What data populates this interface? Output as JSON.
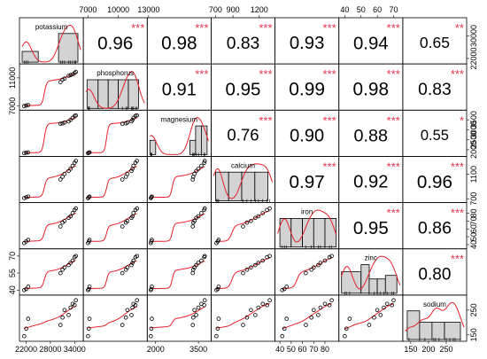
{
  "chart_data": {
    "type": "scatter-matrix",
    "variables": [
      "potassium",
      "phosphorus",
      "magnesium",
      "calcium",
      "iron",
      "zinc",
      "sodium"
    ],
    "colors": {
      "fit_line": "#e8202b",
      "stars": "#e8344f",
      "hist_fill": "#d3d3d3",
      "border": "#000000"
    },
    "observations": [
      {
        "potassium": 21500,
        "phosphorus": 7000,
        "magnesium": 1830,
        "calcium": 710,
        "iron": 42,
        "zinc": 40,
        "sodium": 145
      },
      {
        "potassium": 22000,
        "phosphorus": 7080,
        "magnesium": 1850,
        "calcium": 725,
        "iron": 44,
        "zinc": 41,
        "sodium": 175
      },
      {
        "potassium": 22500,
        "phosphorus": 7150,
        "magnesium": 1870,
        "calcium": 735,
        "iron": 46,
        "zinc": 43,
        "sodium": 215
      },
      {
        "potassium": 30500,
        "phosphorus": 10400,
        "magnesium": 3300,
        "calcium": 1015,
        "iron": 63,
        "zinc": 55,
        "sodium": 190
      },
      {
        "potassium": 31000,
        "phosphorus": 10750,
        "magnesium": 3320,
        "calcium": 1060,
        "iron": 68,
        "zinc": 58,
        "sodium": 220
      },
      {
        "potassium": 31500,
        "phosphorus": 10900,
        "magnesium": 3360,
        "calcium": 1105,
        "iron": 70,
        "zinc": 60,
        "sodium": 250
      },
      {
        "potassium": 32500,
        "phosphorus": 11300,
        "magnesium": 3420,
        "calcium": 1155,
        "iron": 74,
        "zinc": 62,
        "sodium": 230
      },
      {
        "potassium": 33000,
        "phosphorus": 11400,
        "magnesium": 3500,
        "calcium": 1190,
        "iron": 76,
        "zinc": 64,
        "sodium": 260
      },
      {
        "potassium": 33500,
        "phosphorus": 11500,
        "magnesium": 3600,
        "calcium": 1240,
        "iron": 80,
        "zinc": 66,
        "sodium": 275
      },
      {
        "potassium": 34000,
        "phosphorus": 11700,
        "magnesium": 3700,
        "calcium": 1290,
        "iron": 84,
        "zinc": 69,
        "sodium": 270
      },
      {
        "potassium": 34300,
        "phosphorus": 11850,
        "magnesium": 3720,
        "calcium": 1320,
        "iron": 86,
        "zinc": 70,
        "sodium": 290
      }
    ],
    "correlations": [
      {
        "row": 0,
        "col": 1,
        "value": "0.96",
        "stars": "***"
      },
      {
        "row": 0,
        "col": 2,
        "value": "0.98",
        "stars": "***"
      },
      {
        "row": 0,
        "col": 3,
        "value": "0.83",
        "stars": "***"
      },
      {
        "row": 0,
        "col": 4,
        "value": "0.93",
        "stars": "***"
      },
      {
        "row": 0,
        "col": 5,
        "value": "0.94",
        "stars": "***"
      },
      {
        "row": 0,
        "col": 6,
        "value": "0.65",
        "stars": "**"
      },
      {
        "row": 1,
        "col": 2,
        "value": "0.91",
        "stars": "***"
      },
      {
        "row": 1,
        "col": 3,
        "value": "0.95",
        "stars": "***"
      },
      {
        "row": 1,
        "col": 4,
        "value": "0.99",
        "stars": "***"
      },
      {
        "row": 1,
        "col": 5,
        "value": "0.98",
        "stars": "***"
      },
      {
        "row": 1,
        "col": 6,
        "value": "0.83",
        "stars": "***"
      },
      {
        "row": 2,
        "col": 3,
        "value": "0.76",
        "stars": "***"
      },
      {
        "row": 2,
        "col": 4,
        "value": "0.90",
        "stars": "***"
      },
      {
        "row": 2,
        "col": 5,
        "value": "0.88",
        "stars": "***"
      },
      {
        "row": 2,
        "col": 6,
        "value": "0.55",
        "stars": "*"
      },
      {
        "row": 3,
        "col": 4,
        "value": "0.97",
        "stars": "***"
      },
      {
        "row": 3,
        "col": 5,
        "value": "0.92",
        "stars": "***"
      },
      {
        "row": 3,
        "col": 6,
        "value": "0.96",
        "stars": "***"
      },
      {
        "row": 4,
        "col": 5,
        "value": "0.95",
        "stars": "***"
      },
      {
        "row": 4,
        "col": 6,
        "value": "0.86",
        "stars": "***"
      },
      {
        "row": 5,
        "col": 6,
        "value": "0.80",
        "stars": "***"
      }
    ],
    "histograms": [
      {
        "variable": "potassium",
        "bins": [
          [
            21000,
            25000,
            3
          ],
          [
            25000,
            30000,
            0
          ],
          [
            30000,
            34800,
            8
          ]
        ]
      },
      {
        "variable": "phosphorus",
        "bins": [
          [
            6900,
            8000,
            3
          ],
          [
            8000,
            9000,
            3
          ],
          [
            9000,
            10000,
            3
          ],
          [
            10000,
            11000,
            3
          ],
          [
            11000,
            12000,
            3
          ]
        ]
      },
      {
        "variable": "magnesium",
        "bins": [
          [
            1800,
            2000,
            1
          ],
          [
            2000,
            2200,
            0
          ],
          [
            2200,
            2400,
            0
          ],
          [
            2400,
            2600,
            0
          ],
          [
            2600,
            2800,
            0
          ],
          [
            2800,
            3000,
            0
          ],
          [
            3000,
            3200,
            0
          ],
          [
            3200,
            3400,
            1
          ],
          [
            3400,
            3600,
            2
          ],
          [
            3600,
            3800,
            2
          ]
        ]
      },
      {
        "variable": "calcium",
        "bins": [
          [
            700,
            850,
            3
          ],
          [
            850,
            1000,
            3
          ],
          [
            1000,
            1150,
            3
          ],
          [
            1150,
            1300,
            3
          ]
        ]
      },
      {
        "variable": "iron",
        "bins": [
          [
            40,
            50,
            3
          ],
          [
            50,
            60,
            3
          ],
          [
            60,
            70,
            3
          ],
          [
            70,
            80,
            3
          ],
          [
            80,
            90,
            3
          ]
        ]
      },
      {
        "variable": "zinc",
        "bins": [
          [
            38,
            50,
            3
          ],
          [
            50,
            55,
            4
          ],
          [
            55,
            60,
            2
          ],
          [
            60,
            65,
            2
          ],
          [
            65,
            72,
            2.5
          ]
        ]
      },
      {
        "variable": "sodium",
        "bins": [
          [
            140,
            175,
            5
          ],
          [
            175,
            210,
            3
          ],
          [
            210,
            245,
            3
          ],
          [
            245,
            290,
            3
          ]
        ]
      }
    ],
    "axes": [
      {
        "variable": "potassium",
        "range": [
          21000,
          35500
        ],
        "ticks": [
          22000,
          28000,
          34000
        ],
        "tick_labels": [
          "22000",
          "28000",
          "34000"
        ],
        "side": "bottom"
      },
      {
        "variable": "phosphorus",
        "range": [
          6800,
          12600
        ],
        "ticks": [
          7000,
          11000
        ],
        "tick_labels": [
          "7000",
          "11000"
        ],
        "side": "left",
        "top_ticks": [
          7000,
          10000,
          13000
        ],
        "top_tick_labels": [
          "7000",
          "10000",
          "13000"
        ]
      },
      {
        "variable": "magnesium",
        "range": [
          1800,
          3850
        ],
        "ticks": [
          2000,
          3500
        ],
        "tick_labels": [
          "2000",
          "3500"
        ],
        "side": "bottom"
      },
      {
        "variable": "calcium",
        "range": [
          680,
          1350
        ],
        "ticks": [
          700,
          900,
          1200
        ],
        "tick_labels": [
          "700",
          "900",
          "1200"
        ],
        "side": "top",
        "right_ticks": [
          700,
          1100
        ],
        "right_tick_labels": [
          "700",
          "1100"
        ]
      },
      {
        "variable": "iron",
        "range": [
          38,
          90
        ],
        "ticks": [
          40,
          50,
          60,
          70,
          80
        ],
        "tick_labels": [
          "40",
          "50",
          "60",
          "70",
          "80"
        ],
        "side": "bottom"
      },
      {
        "variable": "zinc",
        "range": [
          38,
          74
        ],
        "ticks": [
          40,
          50,
          60,
          70
        ],
        "tick_labels": [
          "40",
          "50",
          "60",
          "70"
        ],
        "side": "top",
        "left_ticks": [
          40,
          55,
          70
        ],
        "left_tick_labels": [
          "40",
          "55",
          "70"
        ]
      },
      {
        "variable": "sodium",
        "range": [
          135,
          300
        ],
        "ticks": [
          150,
          200,
          250
        ],
        "tick_labels": [
          "150",
          "200",
          "250"
        ],
        "side": "bottom",
        "right_ticks": [
          150,
          250
        ],
        "right_tick_labels": [
          "150",
          "250"
        ]
      }
    ],
    "extra_axis_labels": {
      "potassium_right": {
        "ticks": [
          22000,
          30000
        ],
        "tick_labels": [
          "22000",
          "30000"
        ]
      },
      "magnesium_right": {
        "ticks": [
          2000,
          2500,
          3000,
          3500
        ],
        "tick_labels": [
          "2000",
          "2500",
          "3000",
          "3500"
        ]
      },
      "iron_right": {
        "ticks": [
          40,
          50,
          60,
          70,
          80
        ],
        "tick_labels": [
          "40",
          "50",
          "60",
          "70",
          "80"
        ]
      }
    }
  }
}
